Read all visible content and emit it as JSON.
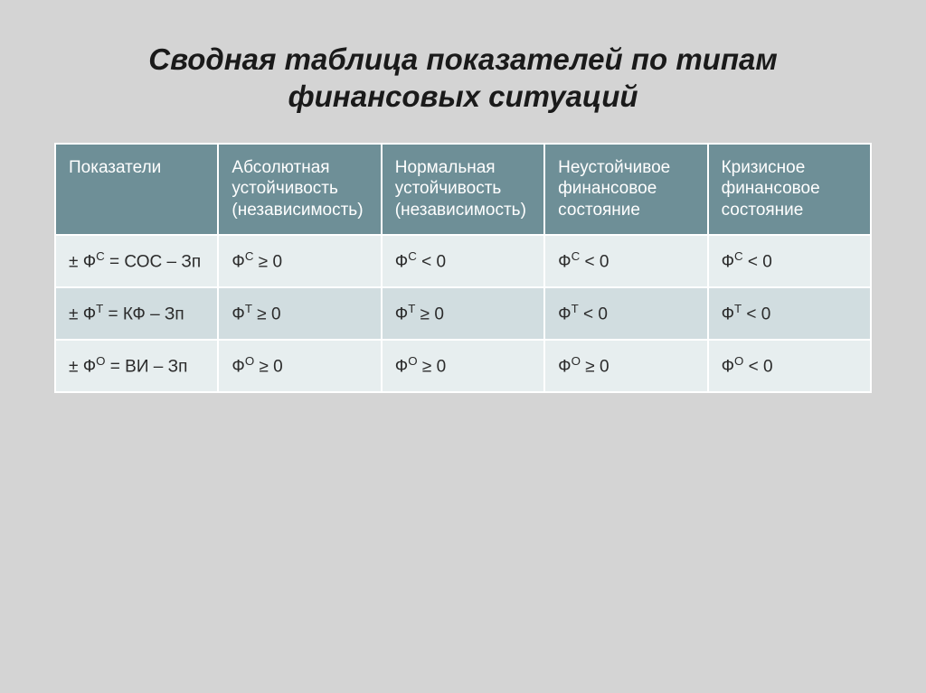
{
  "title": "Сводная таблица показателей по типам финансовых ситуаций",
  "table": {
    "columns": [
      "Показатели",
      "Абсолютная устойчивость (независимость)",
      "Нормальная устойчивость (независимость)",
      "Неустойчивое финансовое состояние",
      "Кризисное финансовое состояние"
    ],
    "rows": [
      {
        "indicator_html": "± Ф<sup>С</sup> = СОС – Зп",
        "cells_html": [
          "Ф<sup>С</sup> ≥ 0",
          "Ф<sup>С</sup> < 0",
          "Ф<sup>С</sup> < 0",
          "Ф<sup>С</sup> < 0"
        ]
      },
      {
        "indicator_html": "± Ф<sup>Т</sup> = КФ – Зп",
        "cells_html": [
          "Ф<sup>Т</sup> ≥ 0",
          "Ф<sup>Т</sup> ≥ 0",
          "Ф<sup>Т</sup> < 0",
          "Ф<sup>Т</sup> < 0"
        ]
      },
      {
        "indicator_html": "± Ф<sup>О</sup> = ВИ – Зп",
        "cells_html": [
          "Ф<sup>О</sup> ≥ 0",
          "Ф<sup>О</sup> ≥ 0",
          "Ф<sup>О</sup> ≥ 0",
          "Ф<sup>О</sup> < 0"
        ]
      }
    ],
    "header_bg": "#6e8f97",
    "header_text_color": "#ffffff",
    "row_colors": [
      "#e7eeef",
      "#d1dde0",
      "#e7eeef"
    ],
    "border_color": "#ffffff",
    "cell_fontsize": 19
  },
  "background_color": "#d4d4d4",
  "title_fontsize": 33,
  "title_color": "#1a1a1a"
}
